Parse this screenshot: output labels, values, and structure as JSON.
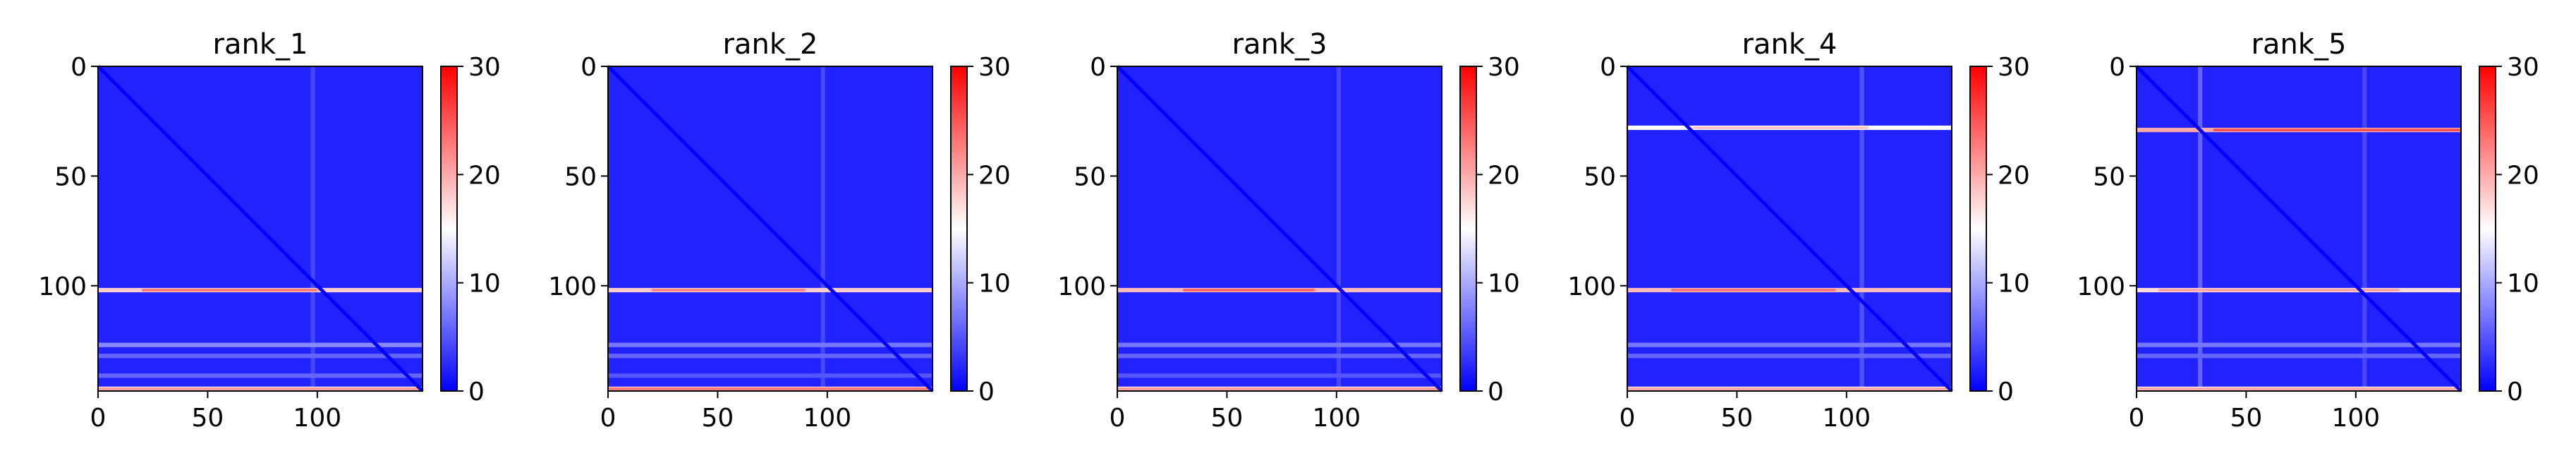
{
  "chart_data": [
    {
      "type": "heatmap",
      "title": "rank_1",
      "matrix_size": 148,
      "xlim": [
        0,
        148
      ],
      "ylim": [
        148,
        0
      ],
      "x_ticks": [
        0,
        50,
        100
      ],
      "y_ticks": [
        0,
        50,
        100
      ],
      "colorbar": {
        "colormap": "bwr",
        "vmin": 0,
        "vmax": 30,
        "ticks": [
          0,
          10,
          20,
          30
        ]
      },
      "background_level": 2,
      "diagonal_level": 0,
      "column_streaks": [
        {
          "index": 97,
          "level": 6
        }
      ],
      "row_bands": [
        {
          "row": 101,
          "level": 18,
          "hot": 24,
          "hot_start": 20,
          "hot_end": 100
        },
        {
          "row": 146,
          "level": 16,
          "hot": 22,
          "hot_start": 0,
          "hot_end": 148
        },
        {
          "row": 126,
          "level": 8
        },
        {
          "row": 131,
          "level": 6
        },
        {
          "row": 140,
          "level": 6
        }
      ]
    },
    {
      "type": "heatmap",
      "title": "rank_2",
      "matrix_size": 148,
      "xlim": [
        0,
        148
      ],
      "ylim": [
        148,
        0
      ],
      "x_ticks": [
        0,
        50,
        100
      ],
      "y_ticks": [
        0,
        50,
        100
      ],
      "colorbar": {
        "colormap": "bwr",
        "vmin": 0,
        "vmax": 30,
        "ticks": [
          0,
          10,
          20,
          30
        ]
      },
      "background_level": 2,
      "diagonal_level": 0,
      "column_streaks": [
        {
          "index": 97,
          "level": 6
        }
      ],
      "row_bands": [
        {
          "row": 101,
          "level": 18,
          "hot": 23,
          "hot_start": 20,
          "hot_end": 90
        },
        {
          "row": 146,
          "level": 18,
          "hot": 24,
          "hot_start": 0,
          "hot_end": 148
        },
        {
          "row": 126,
          "level": 7
        },
        {
          "row": 131,
          "level": 6
        },
        {
          "row": 140,
          "level": 5
        }
      ]
    },
    {
      "type": "heatmap",
      "title": "rank_3",
      "matrix_size": 148,
      "xlim": [
        0,
        148
      ],
      "ylim": [
        148,
        0
      ],
      "x_ticks": [
        0,
        50,
        100
      ],
      "y_ticks": [
        0,
        50,
        100
      ],
      "colorbar": {
        "colormap": "bwr",
        "vmin": 0,
        "vmax": 30,
        "ticks": [
          0,
          10,
          20,
          30
        ]
      },
      "background_level": 2,
      "diagonal_level": 0,
      "column_streaks": [
        {
          "index": 100,
          "level": 6
        }
      ],
      "row_bands": [
        {
          "row": 101,
          "level": 19,
          "hot": 25,
          "hot_start": 30,
          "hot_end": 90
        },
        {
          "row": 146,
          "level": 16,
          "hot": 22,
          "hot_start": 0,
          "hot_end": 148
        },
        {
          "row": 126,
          "level": 7
        },
        {
          "row": 131,
          "level": 6
        },
        {
          "row": 140,
          "level": 5
        }
      ]
    },
    {
      "type": "heatmap",
      "title": "rank_4",
      "matrix_size": 148,
      "xlim": [
        0,
        148
      ],
      "ylim": [
        148,
        0
      ],
      "x_ticks": [
        0,
        50,
        100
      ],
      "y_ticks": [
        0,
        50,
        100
      ],
      "colorbar": {
        "colormap": "bwr",
        "vmin": 0,
        "vmax": 30,
        "ticks": [
          0,
          10,
          20,
          30
        ]
      },
      "background_level": 2,
      "diagonal_level": 0,
      "column_streaks": [
        {
          "index": 106,
          "level": 7
        }
      ],
      "row_bands": [
        {
          "row": 27,
          "level": 15,
          "hot": 19,
          "hot_start": 30,
          "hot_end": 110
        },
        {
          "row": 101,
          "level": 19,
          "hot": 24,
          "hot_start": 20,
          "hot_end": 95
        },
        {
          "row": 146,
          "level": 16,
          "hot": 21,
          "hot_start": 0,
          "hot_end": 148
        },
        {
          "row": 126,
          "level": 7
        },
        {
          "row": 131,
          "level": 6
        }
      ]
    },
    {
      "type": "heatmap",
      "title": "rank_5",
      "matrix_size": 148,
      "xlim": [
        0,
        148
      ],
      "ylim": [
        148,
        0
      ],
      "x_ticks": [
        0,
        50,
        100
      ],
      "y_ticks": [
        0,
        50,
        100
      ],
      "colorbar": {
        "colormap": "bwr",
        "vmin": 0,
        "vmax": 30,
        "ticks": [
          0,
          10,
          20,
          30
        ]
      },
      "background_level": 2,
      "diagonal_level": 0,
      "column_streaks": [
        {
          "index": 28,
          "level": 9
        },
        {
          "index": 103,
          "level": 6
        }
      ],
      "row_bands": [
        {
          "row": 28,
          "level": 20,
          "hot": 26,
          "hot_start": 35,
          "hot_end": 148
        },
        {
          "row": 101,
          "level": 17,
          "hot": 21,
          "hot_start": 10,
          "hot_end": 120
        },
        {
          "row": 146,
          "level": 16,
          "hot": 21,
          "hot_start": 0,
          "hot_end": 148
        },
        {
          "row": 126,
          "level": 7
        },
        {
          "row": 131,
          "level": 6
        }
      ]
    }
  ]
}
